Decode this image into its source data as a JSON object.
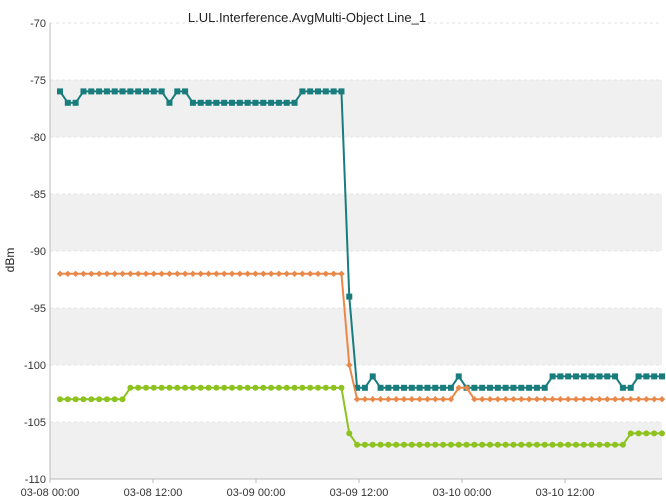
{
  "chart_data": {
    "type": "line",
    "title": "L.UL.Interference.AvgMulti-Object Line_1",
    "xlabel": "",
    "ylabel": "dBm",
    "ylim": [
      -110,
      -70
    ],
    "yticks": [
      -70,
      -75,
      -80,
      -85,
      -90,
      -95,
      -100,
      -105,
      -110
    ],
    "xlim": [
      "03-08 00:00",
      "03-10 22:00"
    ],
    "xtick_labels": [
      "03-08 00:00",
      "03-08 12:00",
      "03-09 00:00",
      "03-09 12:00",
      "03-10 00:00",
      "03-10 12:00"
    ],
    "grid": "alternating horizontal bands",
    "legend": "none",
    "series": [
      {
        "color": "#1a7d7d",
        "marker": "square",
        "values": [
          -76,
          -77,
          -77,
          -76,
          -76,
          -76,
          -76,
          -76,
          -76,
          -76,
          -76,
          -76,
          -76,
          -76,
          -77,
          -76,
          -76,
          -77,
          -77,
          -77,
          -77,
          -77,
          -77,
          -77,
          -77,
          -77,
          -77,
          -77,
          -77,
          -77,
          -77,
          -76,
          -76,
          -76,
          -76,
          -76,
          -76,
          -94,
          -102,
          -102,
          -101,
          -102,
          -102,
          -102,
          -102,
          -102,
          -102,
          -102,
          -102,
          -102,
          -102,
          -101,
          -102,
          -102,
          -102,
          -102,
          -102,
          -102,
          -102,
          -102,
          -102,
          -102,
          -102,
          -101,
          -101,
          -101,
          -101,
          -101,
          -101,
          -101,
          -101,
          -101,
          -102,
          -102,
          -101,
          -101,
          -101,
          -101
        ]
      },
      {
        "color": "#e8894a",
        "marker": "diamond",
        "values": [
          -92,
          -92,
          -92,
          -92,
          -92,
          -92,
          -92,
          -92,
          -92,
          -92,
          -92,
          -92,
          -92,
          -92,
          -92,
          -92,
          -92,
          -92,
          -92,
          -92,
          -92,
          -92,
          -92,
          -92,
          -92,
          -92,
          -92,
          -92,
          -92,
          -92,
          -92,
          -92,
          -92,
          -92,
          -92,
          -92,
          -92,
          -100,
          -103,
          -103,
          -103,
          -103,
          -103,
          -103,
          -103,
          -103,
          -103,
          -103,
          -103,
          -103,
          -103,
          -102,
          -102,
          -103,
          -103,
          -103,
          -103,
          -103,
          -103,
          -103,
          -103,
          -103,
          -103,
          -103,
          -103,
          -103,
          -103,
          -103,
          -103,
          -103,
          -103,
          -103,
          -103,
          -103,
          -103,
          -103,
          -103,
          -103
        ]
      },
      {
        "color": "#8dc21f",
        "marker": "circle",
        "values": [
          -103,
          -103,
          -103,
          -103,
          -103,
          -103,
          -103,
          -103,
          -103,
          -102,
          -102,
          -102,
          -102,
          -102,
          -102,
          -102,
          -102,
          -102,
          -102,
          -102,
          -102,
          -102,
          -102,
          -102,
          -102,
          -102,
          -102,
          -102,
          -102,
          -102,
          -102,
          -102,
          -102,
          -102,
          -102,
          -102,
          -102,
          -106,
          -107,
          -107,
          -107,
          -107,
          -107,
          -107,
          -107,
          -107,
          -107,
          -107,
          -107,
          -107,
          -107,
          -107,
          -107,
          -107,
          -107,
          -107,
          -107,
          -107,
          -107,
          -107,
          -107,
          -107,
          -107,
          -107,
          -107,
          -107,
          -107,
          -107,
          -107,
          -107,
          -107,
          -107,
          -107,
          -106,
          -106,
          -106,
          -106,
          -106
        ]
      }
    ]
  }
}
